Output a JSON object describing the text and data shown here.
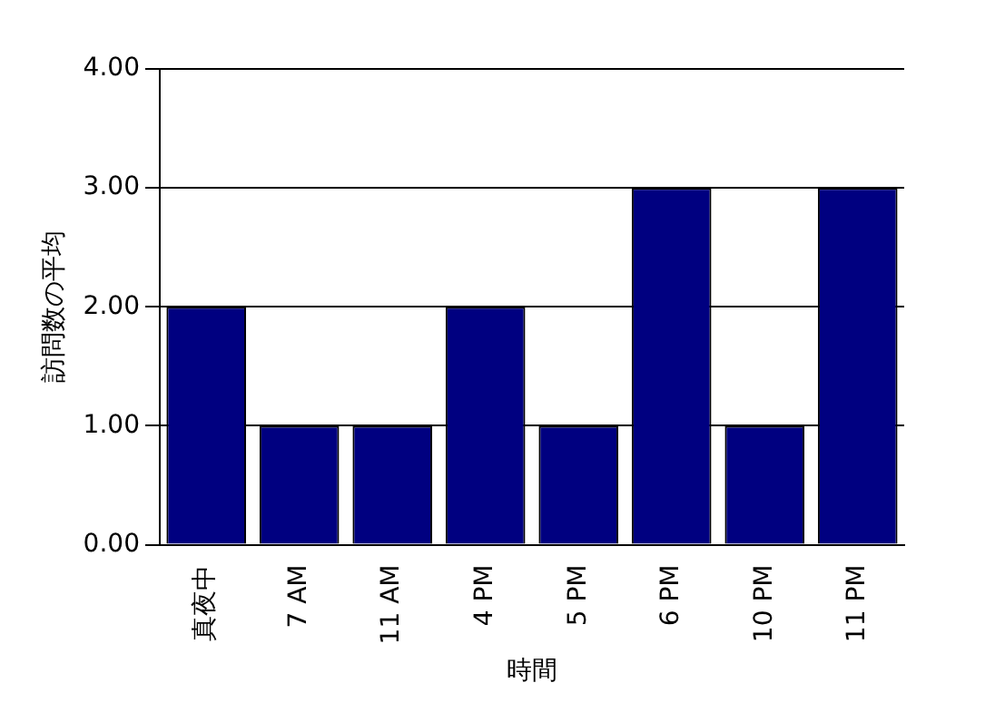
{
  "chart_data": {
    "type": "bar",
    "xlabel": "時間",
    "ylabel": "訪問数の平均",
    "categories": [
      "真夜中",
      "7 AM",
      "11 AM",
      "4 PM",
      "5 PM",
      "6 PM",
      "10 PM",
      "11 PM"
    ],
    "values": [
      2,
      1,
      1,
      2,
      1,
      3,
      1,
      3
    ],
    "color": "#000080",
    "ylim": [
      0,
      4
    ],
    "yticks": [
      {
        "value": 0,
        "label": "0.00"
      },
      {
        "value": 1,
        "label": "1.00"
      },
      {
        "value": 2,
        "label": "2.00"
      },
      {
        "value": 3,
        "label": "3.00"
      },
      {
        "value": 4,
        "label": "4.00"
      }
    ],
    "grid": "y",
    "legend": false
  }
}
